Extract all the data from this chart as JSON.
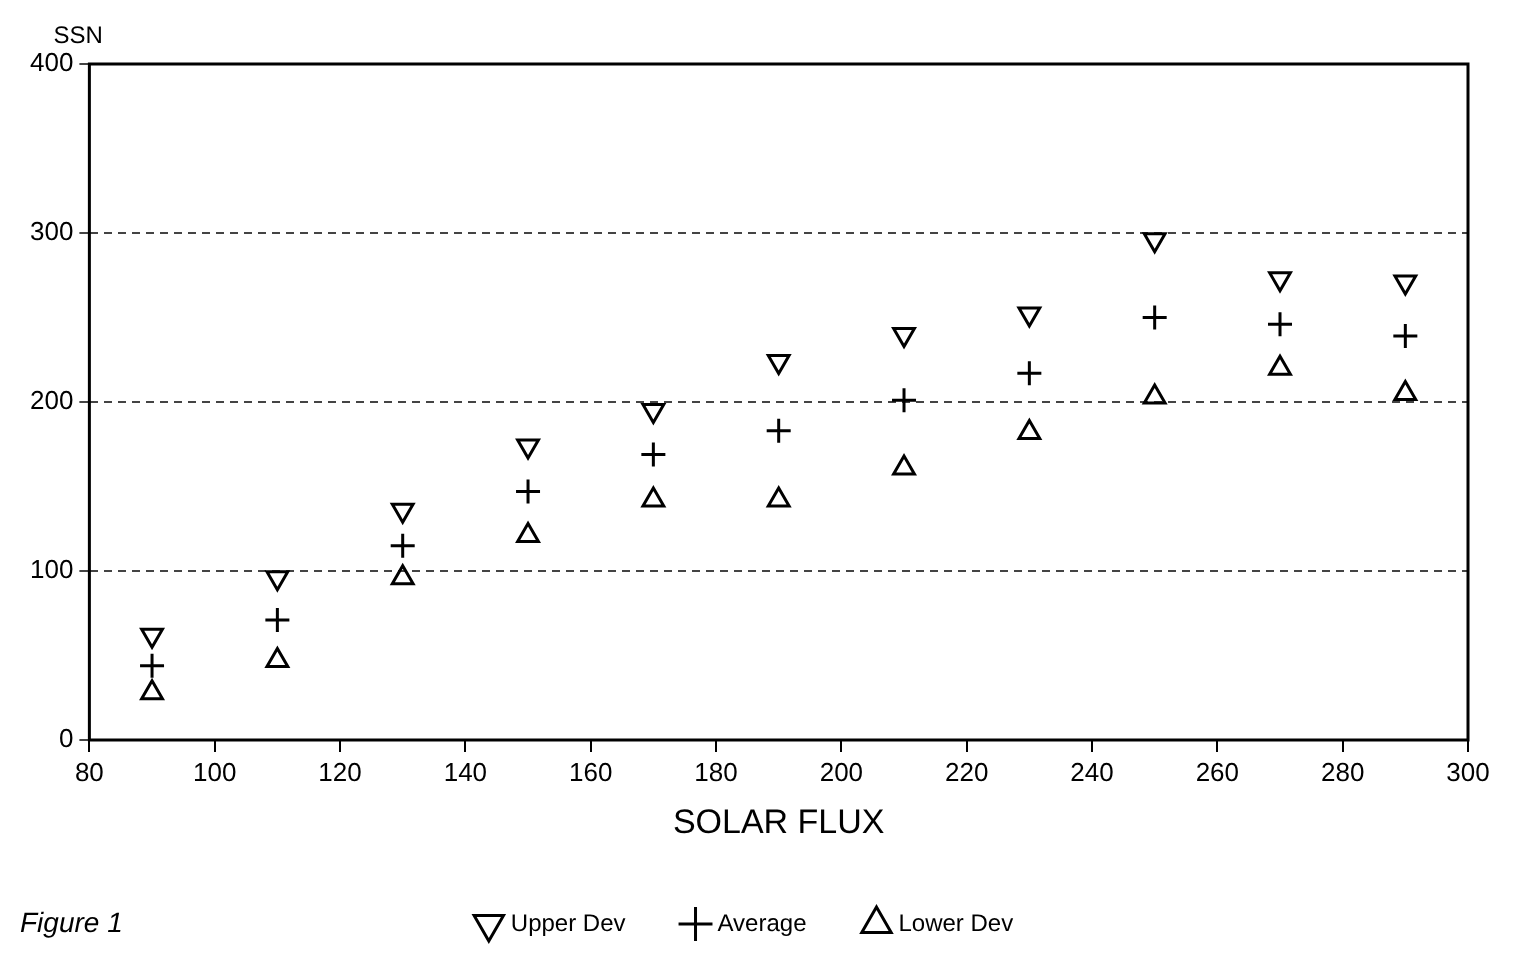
{
  "chart_data": {
    "type": "scatter",
    "ylabel": "SSN",
    "xlabel": "SOLAR FLUX",
    "annotations": [
      "Figure 1"
    ],
    "x": [
      90,
      110,
      130,
      150,
      170,
      190,
      210,
      230,
      250,
      270,
      290
    ],
    "series": [
      {
        "name": "Upper Dev",
        "color": "#000000",
        "marker": "triangle-down",
        "values": [
          62,
          96,
          136,
          174,
          195,
          224,
          240,
          252,
          296,
          273,
          271
        ]
      },
      {
        "name": "Average",
        "color": "#000000",
        "marker": "cross",
        "values": [
          44,
          71,
          115,
          147,
          169,
          183,
          201,
          217,
          250,
          246,
          239
        ]
      },
      {
        "name": "Lower Dev",
        "color": "#000000",
        "marker": "triangle",
        "values": [
          28,
          47,
          96,
          121,
          142,
          142,
          161,
          182,
          203,
          220,
          205
        ]
      }
    ],
    "xlim": [
      80,
      300
    ],
    "xticks": [
      80,
      100,
      120,
      140,
      160,
      180,
      200,
      220,
      240,
      260,
      280,
      300
    ],
    "ylim": [
      0,
      400
    ],
    "yticks": [
      0,
      100,
      200,
      300,
      400
    ],
    "grid": "y",
    "line_style": "dashed",
    "legend": "bottom"
  }
}
